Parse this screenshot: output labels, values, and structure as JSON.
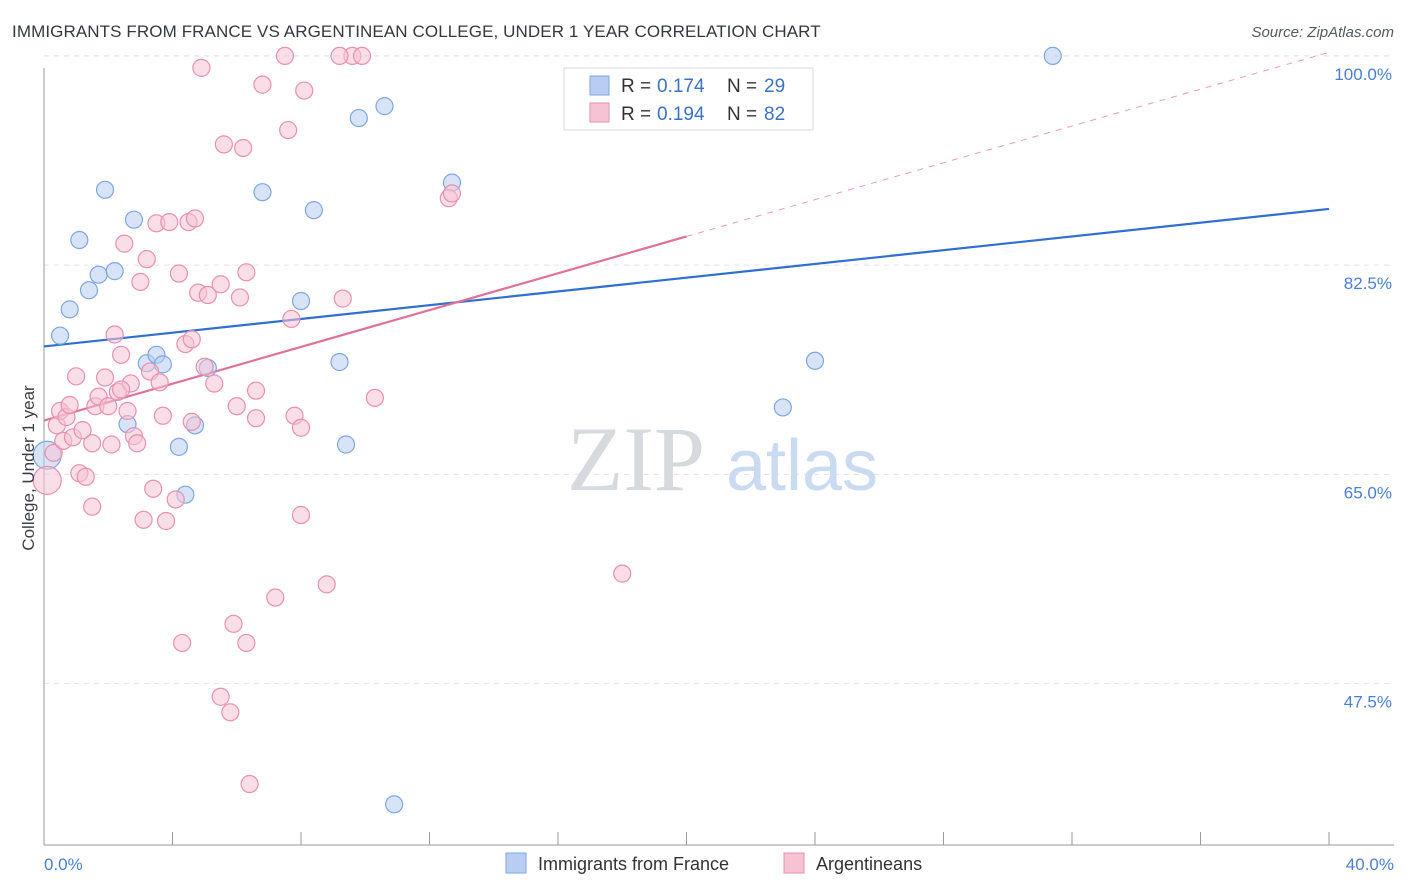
{
  "header": {
    "title": "IMMIGRANTS FROM FRANCE VS ARGENTINEAN COLLEGE, UNDER 1 YEAR CORRELATION CHART",
    "source": "Source: ZipAtlas.com"
  },
  "watermark": {
    "zip": "ZIP",
    "atlas": "atlas"
  },
  "colors": {
    "blue_fill": "#b7cdf2",
    "blue_stroke": "#7fa6e0",
    "blue_line": "#2f6fcf",
    "pink_fill": "#f6c3d3",
    "pink_stroke": "#e98fb0",
    "pink_line": "#e0729a",
    "axis_text": "#4a7fd0",
    "grid": "#e3e3e3"
  },
  "legend": {
    "r_label": "R =",
    "n_label": "N =",
    "entries": [
      {
        "r": "0.174",
        "n": "29"
      },
      {
        "r": "0.194",
        "n": "82"
      }
    ]
  },
  "bottom_legend": [
    "Immigrants from France",
    "Argentineans"
  ],
  "chart_data": {
    "type": "scatter",
    "title": "IMMIGRANTS FROM FRANCE VS ARGENTINEAN COLLEGE, UNDER 1 YEAR CORRELATION CHART",
    "xlabel": "",
    "ylabel": "College, Under 1 year",
    "xlim": [
      0,
      40
    ],
    "ylim": [
      34,
      102
    ],
    "x_tick_labels": [
      "0.0%",
      "40.0%"
    ],
    "y_ticks": [
      47.5,
      65.0,
      82.5,
      100.0
    ],
    "y_tick_labels": [
      "47.5%",
      "65.0%",
      "82.5%",
      "100.0%"
    ],
    "legend_position": "top-center",
    "series": [
      {
        "name": "Immigrants from France",
        "r": 0.174,
        "n": 29,
        "trend": {
          "x": [
            0,
            40
          ],
          "y": [
            75.7,
            87.2
          ]
        },
        "points": [
          [
            0.1,
            66.6
          ],
          [
            0.5,
            76.6
          ],
          [
            0.8,
            78.8
          ],
          [
            1.1,
            84.6
          ],
          [
            1.4,
            80.4
          ],
          [
            1.7,
            81.7
          ],
          [
            1.9,
            88.8
          ],
          [
            2.2,
            82.0
          ],
          [
            2.6,
            69.2
          ],
          [
            2.8,
            86.3
          ],
          [
            3.2,
            74.3
          ],
          [
            3.5,
            75.0
          ],
          [
            3.7,
            74.2
          ],
          [
            4.2,
            67.3
          ],
          [
            4.4,
            63.3
          ],
          [
            4.7,
            69.1
          ],
          [
            5.1,
            73.9
          ],
          [
            6.8,
            88.6
          ],
          [
            8.0,
            79.5
          ],
          [
            8.4,
            87.1
          ],
          [
            9.2,
            74.4
          ],
          [
            9.4,
            67.5
          ],
          [
            9.8,
            94.8
          ],
          [
            10.6,
            95.8
          ],
          [
            10.9,
            37.4
          ],
          [
            12.7,
            89.4
          ],
          [
            23.0,
            70.6
          ],
          [
            24.0,
            74.5
          ],
          [
            31.4,
            100.0
          ]
        ]
      },
      {
        "name": "Argentineans",
        "r": 0.194,
        "n": 82,
        "trend": {
          "x": [
            0,
            20
          ],
          "y": [
            69.5,
            84.9
          ]
        },
        "trend_ext": {
          "x": [
            20,
            40
          ],
          "y": [
            84.9,
            100.3
          ]
        },
        "points": [
          [
            0.1,
            64.5
          ],
          [
            0.3,
            66.8
          ],
          [
            0.4,
            69.1
          ],
          [
            0.5,
            70.3
          ],
          [
            0.6,
            67.8
          ],
          [
            0.7,
            69.8
          ],
          [
            0.8,
            70.8
          ],
          [
            0.9,
            68.1
          ],
          [
            1.0,
            73.2
          ],
          [
            1.1,
            65.1
          ],
          [
            1.3,
            64.8
          ],
          [
            1.5,
            67.6
          ],
          [
            1.5,
            62.3
          ],
          [
            1.6,
            70.7
          ],
          [
            1.7,
            71.5
          ],
          [
            1.9,
            73.1
          ],
          [
            2.0,
            70.7
          ],
          [
            2.1,
            67.5
          ],
          [
            2.2,
            76.7
          ],
          [
            2.3,
            71.9
          ],
          [
            2.4,
            75.0
          ],
          [
            2.5,
            84.3
          ],
          [
            2.6,
            70.3
          ],
          [
            2.7,
            72.6
          ],
          [
            2.8,
            68.2
          ],
          [
            2.9,
            67.6
          ],
          [
            3.0,
            81.1
          ],
          [
            3.1,
            61.2
          ],
          [
            3.3,
            73.6
          ],
          [
            3.4,
            63.8
          ],
          [
            3.5,
            86.0
          ],
          [
            3.6,
            72.7
          ],
          [
            3.7,
            69.9
          ],
          [
            3.8,
            61.1
          ],
          [
            3.9,
            86.1
          ],
          [
            4.1,
            62.9
          ],
          [
            4.2,
            81.8
          ],
          [
            4.3,
            50.9
          ],
          [
            4.4,
            75.9
          ],
          [
            4.5,
            86.1
          ],
          [
            4.6,
            69.4
          ],
          [
            4.6,
            76.3
          ],
          [
            4.7,
            86.4
          ],
          [
            4.8,
            80.2
          ],
          [
            4.9,
            99.0
          ],
          [
            5.1,
            80.0
          ],
          [
            5.3,
            72.6
          ],
          [
            5.5,
            46.4
          ],
          [
            5.5,
            80.9
          ],
          [
            5.6,
            92.6
          ],
          [
            5.8,
            45.1
          ],
          [
            5.9,
            52.5
          ],
          [
            6.0,
            70.7
          ],
          [
            6.1,
            79.8
          ],
          [
            6.2,
            92.3
          ],
          [
            6.3,
            50.9
          ],
          [
            6.3,
            81.9
          ],
          [
            6.4,
            39.1
          ],
          [
            6.6,
            69.7
          ],
          [
            6.8,
            97.6
          ],
          [
            7.2,
            54.7
          ],
          [
            7.6,
            93.8
          ],
          [
            7.7,
            78.0
          ],
          [
            7.8,
            69.9
          ],
          [
            8.0,
            61.6
          ],
          [
            8.0,
            68.9
          ],
          [
            8.1,
            97.1
          ],
          [
            8.8,
            55.8
          ],
          [
            9.3,
            79.7
          ],
          [
            9.6,
            100.0
          ],
          [
            9.9,
            100.0
          ],
          [
            10.3,
            71.4
          ],
          [
            12.6,
            88.1
          ],
          [
            12.7,
            88.5
          ],
          [
            18.0,
            56.7
          ],
          [
            7.5,
            100.0
          ],
          [
            9.2,
            100.0
          ],
          [
            2.4,
            72.1
          ],
          [
            3.2,
            83.0
          ],
          [
            5.0,
            74.0
          ],
          [
            1.2,
            68.7
          ],
          [
            6.6,
            72.0
          ]
        ]
      }
    ]
  }
}
